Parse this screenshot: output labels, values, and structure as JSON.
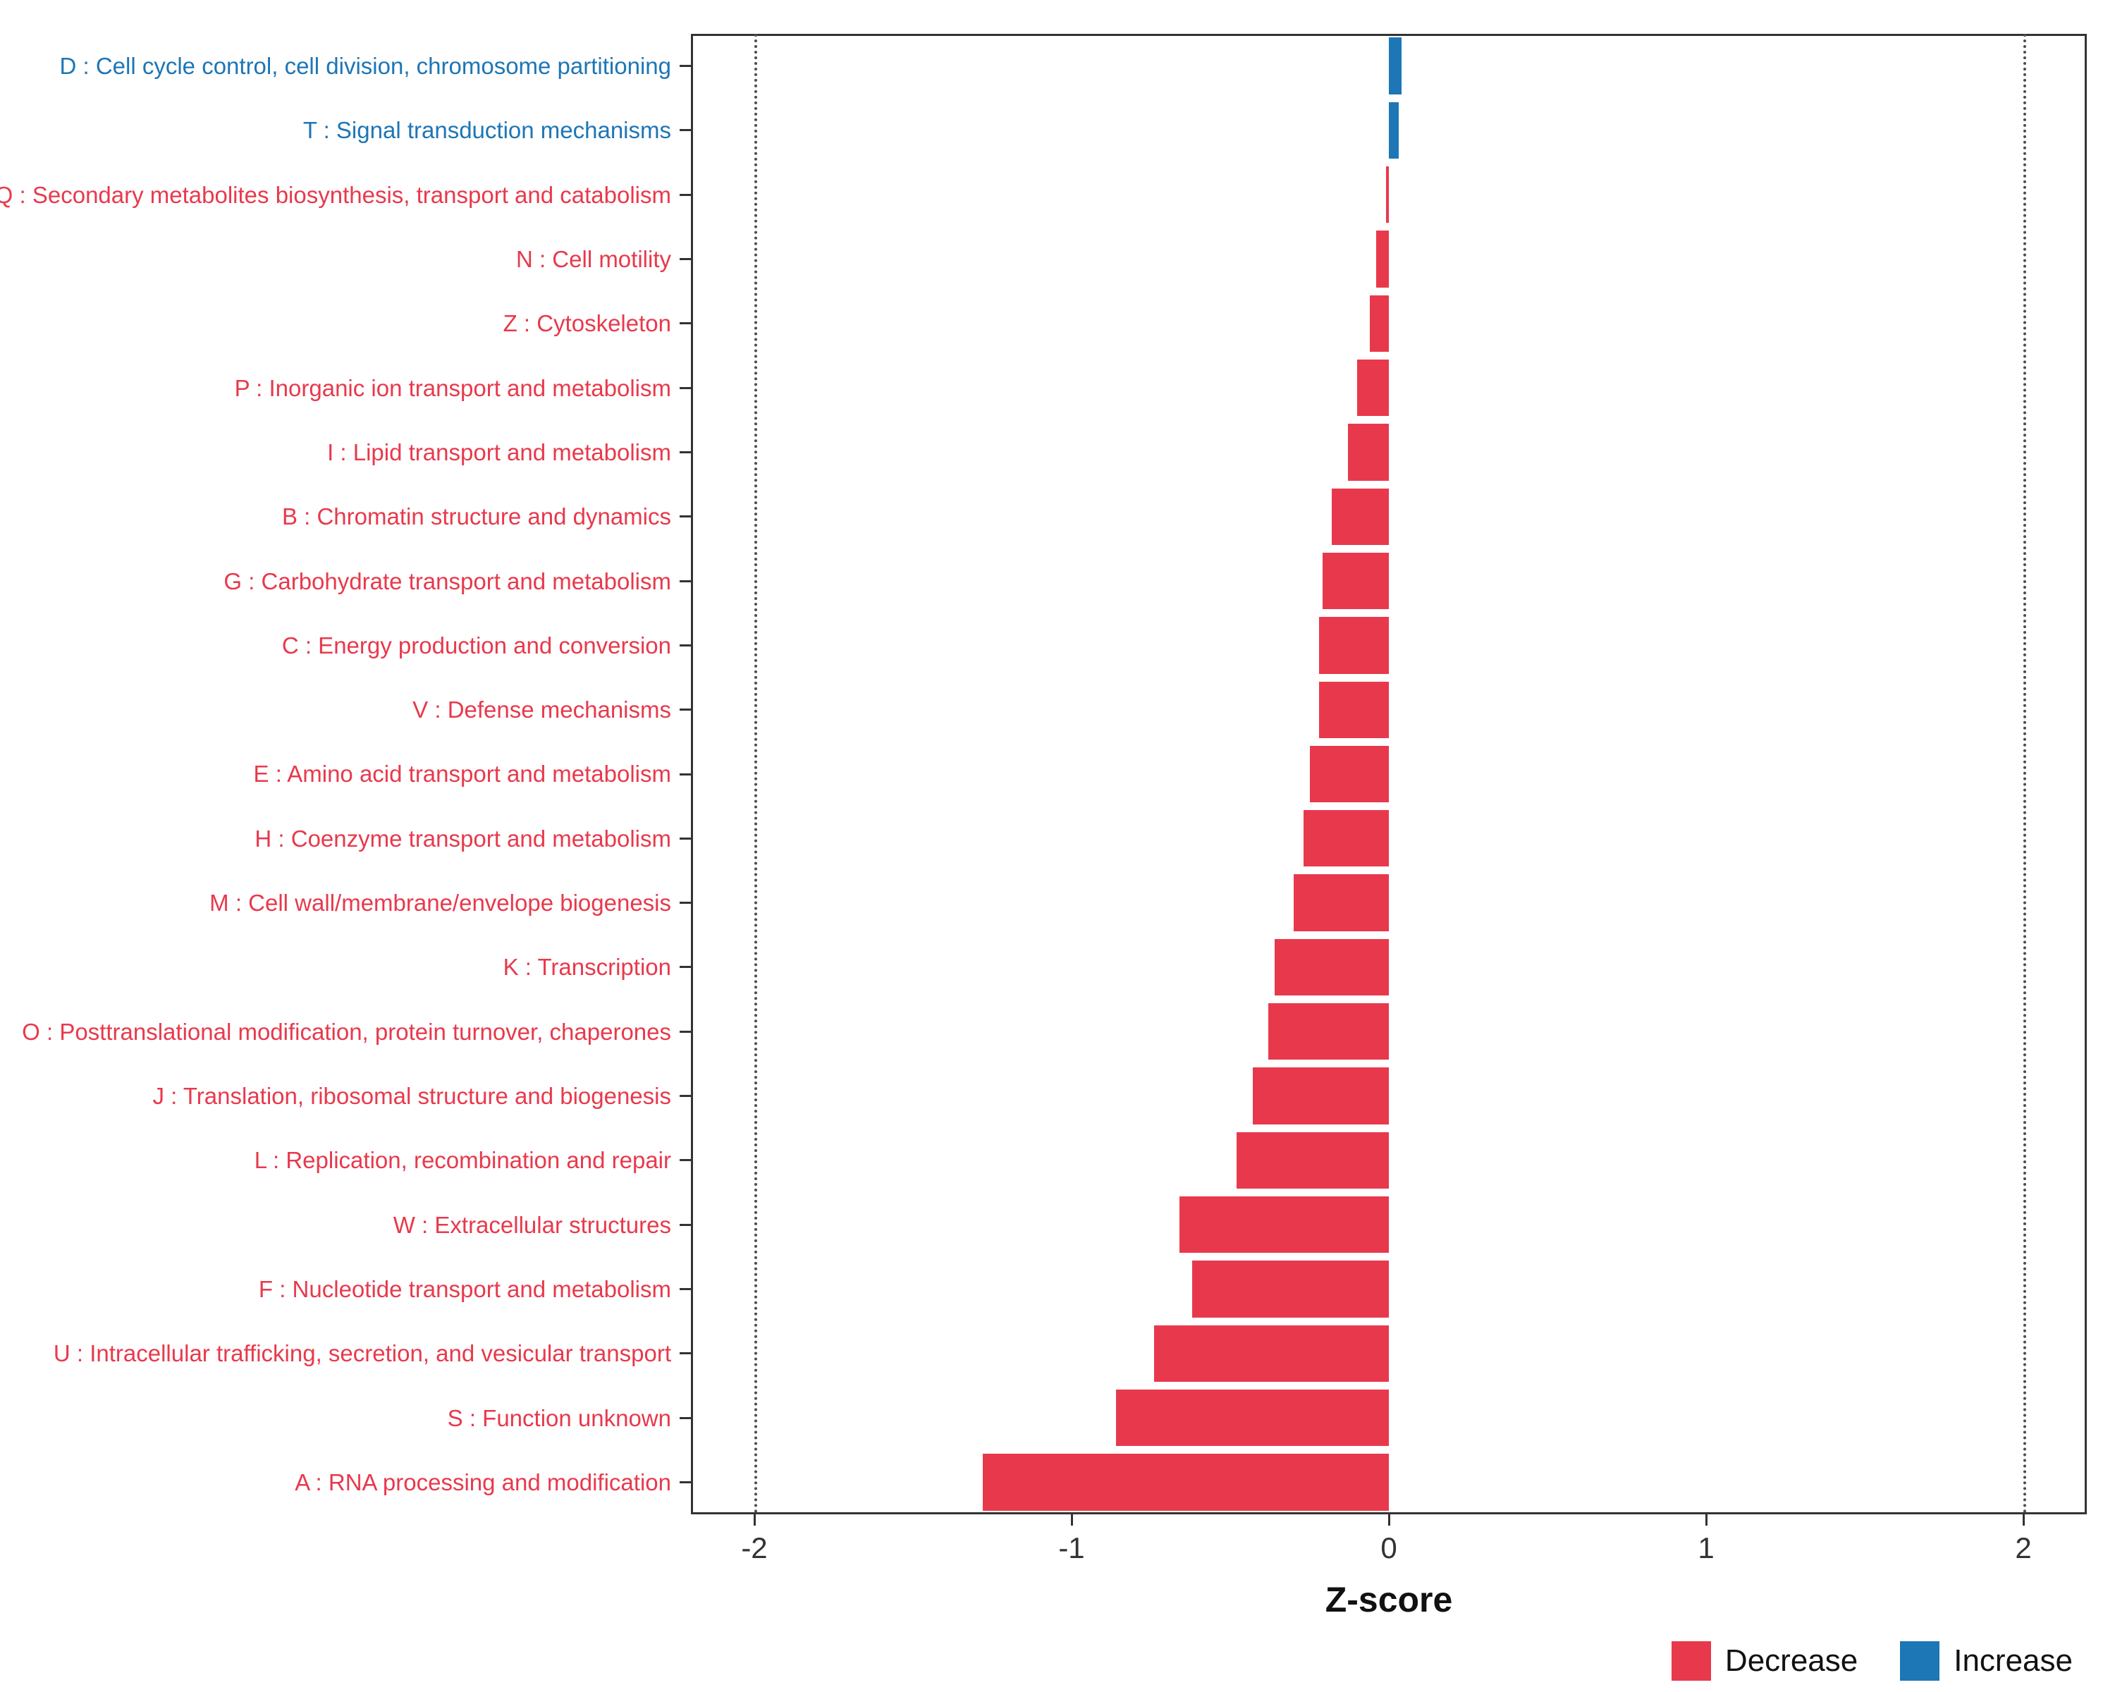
{
  "chart_data": {
    "type": "bar",
    "orientation": "horizontal",
    "title": "",
    "xlabel": "Z-score",
    "ylabel": "",
    "xlim": [
      -2.2,
      2.2
    ],
    "x_ticks": [
      -2,
      -1,
      0,
      1,
      2
    ],
    "reference_lines": [
      -2,
      2
    ],
    "grid": "off",
    "legend_position": "bottom-right",
    "categories": [
      "D : Cell cycle control, cell division, chromosome partitioning",
      "T : Signal transduction mechanisms",
      "Q : Secondary metabolites biosynthesis, transport and catabolism",
      "N : Cell motility",
      "Z : Cytoskeleton",
      "P : Inorganic ion transport and metabolism",
      "I : Lipid transport and metabolism",
      "B : Chromatin structure and dynamics",
      "G : Carbohydrate transport and metabolism",
      "C : Energy production and conversion",
      "V : Defense mechanisms",
      "E : Amino acid transport and metabolism",
      "H : Coenzyme transport and metabolism",
      "M : Cell wall/membrane/envelope biogenesis",
      "K : Transcription",
      "O : Posttranslational modification, protein turnover, chaperones",
      "J : Translation, ribosomal structure and biogenesis",
      "L : Replication, recombination and repair",
      "W : Extracellular structures",
      "F : Nucleotide transport and metabolism",
      "U : Intracellular trafficking, secretion, and vesicular transport",
      "S : Function unknown",
      "A : RNA processing and modification"
    ],
    "values": [
      0.04,
      0.03,
      -0.01,
      -0.04,
      -0.06,
      -0.1,
      -0.13,
      -0.18,
      -0.21,
      -0.22,
      -0.22,
      -0.25,
      -0.27,
      -0.3,
      -0.36,
      -0.38,
      -0.43,
      -0.48,
      -0.66,
      -0.62,
      -0.74,
      -0.86,
      -1.28
    ],
    "directions": [
      "increase",
      "increase",
      "decrease",
      "decrease",
      "decrease",
      "decrease",
      "decrease",
      "decrease",
      "decrease",
      "decrease",
      "decrease",
      "decrease",
      "decrease",
      "decrease",
      "decrease",
      "decrease",
      "decrease",
      "decrease",
      "decrease",
      "decrease",
      "decrease",
      "decrease",
      "decrease"
    ],
    "colors": {
      "decrease": "#E8394C",
      "increase": "#1D76B5",
      "reference_line": "#4d4d4d",
      "panel_border": "#333333"
    },
    "legend": [
      {
        "label": "Decrease",
        "key": "decrease"
      },
      {
        "label": "Increase",
        "key": "increase"
      }
    ]
  }
}
